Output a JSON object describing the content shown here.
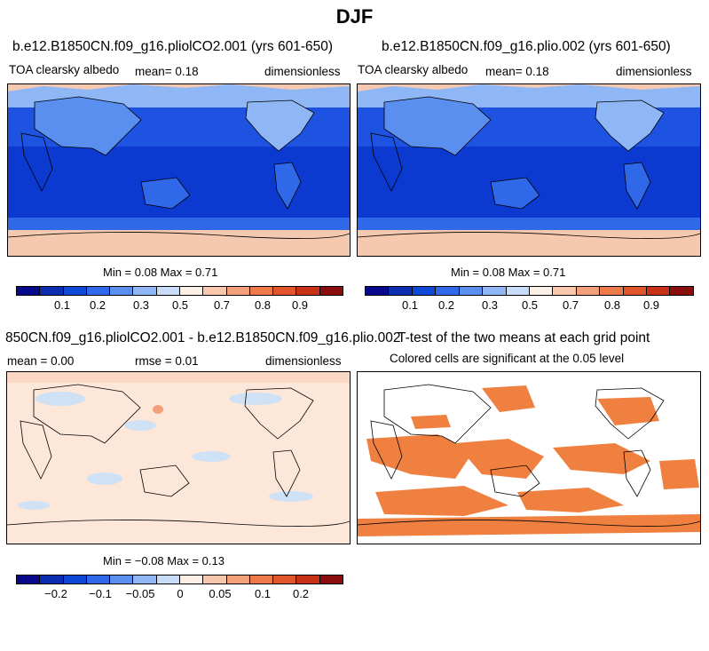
{
  "figure_title": "DJF",
  "colors": {
    "scale": [
      "#08088a",
      "#0b2db0",
      "#0e48d6",
      "#2f68e8",
      "#5a8ff0",
      "#8fb7f5",
      "#c8dcf7",
      "#fcefe6",
      "#f8c8ac",
      "#f3a07a",
      "#ee7a4a",
      "#e0552a",
      "#c83214",
      "#8a0e0e"
    ],
    "ocean_dark": "#0c3ad0",
    "ocean_mid": "#1e52e0",
    "ice": "#f5c8b0",
    "diff_bg": "#fde7d9",
    "diff_neg": "#cfe2f5",
    "sig": "#f08040",
    "coast": "#000000"
  },
  "panels": [
    {
      "title": "b.e12.B1850CN.f09_g16.pliolCO2.001 (yrs 601-650)",
      "left_label": "TOA clearsky albedo",
      "mean_label": "mean=   0.18",
      "right_label": "dimensionless",
      "minmax": "Min =   0.08 Max =   0.71",
      "ticks": [
        "0.1",
        "0.2",
        "0.3",
        "0.5",
        "0.7",
        "0.8",
        "0.9"
      ]
    },
    {
      "title": "b.e12.B1850CN.f09_g16.plio.002 (yrs 601-650)",
      "left_label": "TOA clearsky albedo",
      "mean_label": "mean=   0.18",
      "right_label": "dimensionless",
      "minmax": "Min =   0.08 Max =   0.71",
      "ticks": [
        "0.1",
        "0.2",
        "0.3",
        "0.5",
        "0.7",
        "0.8",
        "0.9"
      ]
    },
    {
      "title": "850CN.f09_g16.pliolCO2.001 - b.e12.B1850CN.f09_g16.plio.002",
      "left_label": "mean =   0.00",
      "mean_label": "rmse =   0.01",
      "right_label": "dimensionless",
      "minmax": "Min =  −0.08 Max =   0.13",
      "ticks": [
        "−0.2",
        "−0.1",
        "−0.05",
        "0",
        "0.05",
        "0.1",
        "0.2"
      ]
    },
    {
      "title": "T-test of the two means at each grid point",
      "subtitle": "Colored cells are significant at the 0.05 level"
    }
  ],
  "chart_data": [
    {
      "type": "heatmap",
      "title": "b.e12.B1850CN.f09_g16.pliolCO2.001 (yrs 601-650)",
      "variable": "TOA clearsky albedo",
      "units": "dimensionless",
      "mean": 0.18,
      "min": 0.08,
      "max": 0.71,
      "colorbar_levels": [
        0.1,
        0.2,
        0.3,
        0.5,
        0.7,
        0.8,
        0.9
      ],
      "colorbar_tick_labels": [
        "0.1",
        "0.2",
        "0.3",
        "0.5",
        "0.7",
        "0.8",
        "0.9"
      ]
    },
    {
      "type": "heatmap",
      "title": "b.e12.B1850CN.f09_g16.plio.002 (yrs 601-650)",
      "variable": "TOA clearsky albedo",
      "units": "dimensionless",
      "mean": 0.18,
      "min": 0.08,
      "max": 0.71,
      "colorbar_levels": [
        0.1,
        0.2,
        0.3,
        0.5,
        0.7,
        0.8,
        0.9
      ],
      "colorbar_tick_labels": [
        "0.1",
        "0.2",
        "0.3",
        "0.5",
        "0.7",
        "0.8",
        "0.9"
      ]
    },
    {
      "type": "heatmap",
      "title": "850CN.f09_g16.pliolCO2.001 - b.e12.B1850CN.f09_g16.plio.002",
      "units": "dimensionless",
      "mean": 0.0,
      "rmse": 0.01,
      "min": -0.08,
      "max": 0.13,
      "colorbar_levels": [
        -0.2,
        -0.1,
        -0.05,
        0,
        0.05,
        0.1,
        0.2
      ],
      "colorbar_tick_labels": [
        "−0.2",
        "−0.1",
        "−0.05",
        "0",
        "0.05",
        "0.1",
        "0.2"
      ]
    },
    {
      "type": "heatmap",
      "title": "T-test of the two means at each grid point",
      "note": "Colored cells are significant at the 0.05 level",
      "significance_level": 0.05
    }
  ]
}
